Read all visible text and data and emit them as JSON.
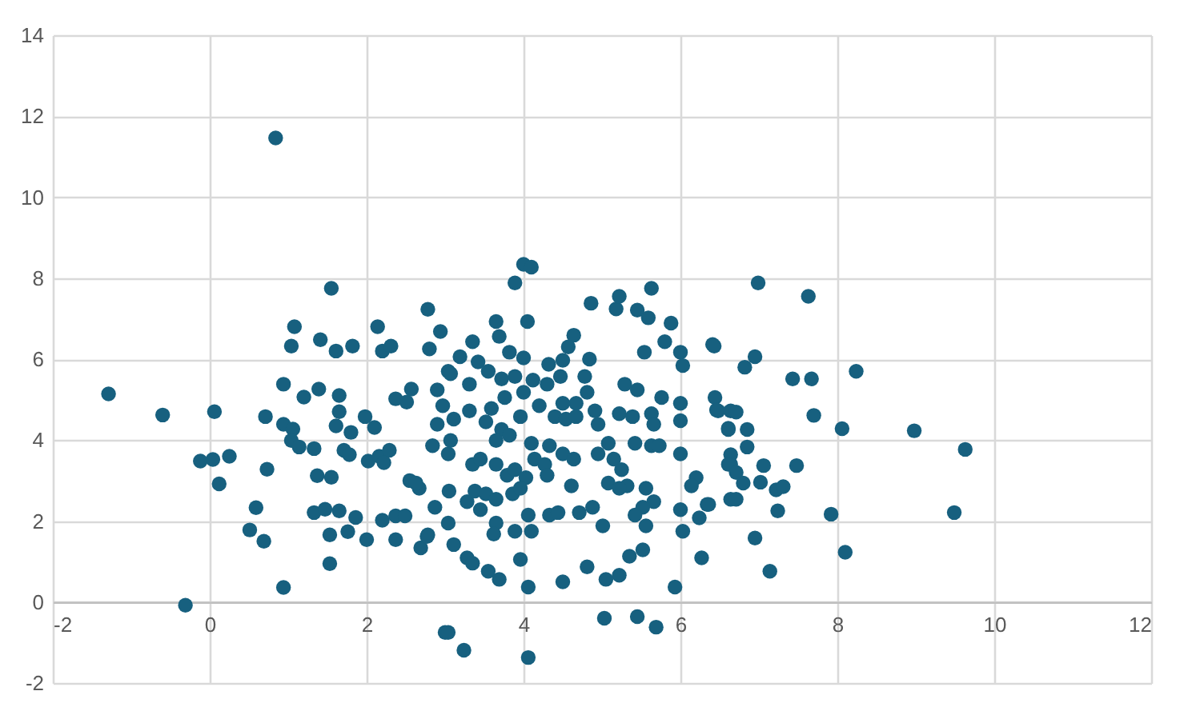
{
  "chart_data": {
    "type": "scatter",
    "marker": "circle",
    "grid": true,
    "xlim": [
      -2,
      12
    ],
    "xticks": [
      -2,
      0,
      2,
      4,
      6,
      8,
      10,
      12
    ],
    "ylim": [
      -2,
      14
    ],
    "yticks": [
      -2,
      0,
      2,
      4,
      6,
      8,
      10,
      12,
      14
    ],
    "series": [
      {
        "color": "#17607f",
        "x": [
          -1.29,
          -0.6,
          -0.31,
          -0.12,
          0.04,
          0.06,
          0.25,
          0.12,
          0.59,
          0.51,
          0.69,
          0.73,
          0.71,
          0.94,
          0.94,
          1.04,
          1.08,
          0.94,
          1.06,
          1.04,
          1.14,
          1.33,
          1.2,
          1.39,
          1.41,
          1.55,
          1.61,
          1.82,
          1.65,
          1.65,
          1.61,
          1.8,
          1.71,
          1.78,
          1.37,
          1.55,
          1.33,
          1.47,
          1.65,
          1.86,
          1.53,
          1.76,
          1.53,
          2.0,
          1.98,
          2.1,
          2.02,
          2.16,
          2.29,
          2.22,
          2.14,
          2.2,
          2.31,
          2.37,
          2.57,
          2.51,
          2.2,
          2.37,
          2.49,
          2.37,
          2.55,
          2.67,
          2.69,
          2.78,
          2.78,
          2.8,
          2.94,
          3.0,
          0.84,
          4.0,
          4.1,
          3.89,
          3.65,
          3.69,
          4.05,
          3.35,
          3.19,
          3.42,
          3.82,
          4.0,
          3.04,
          2.9,
          2.97,
          3.07,
          3.31,
          3.55,
          3.72,
          3.89,
          4.12,
          4.32,
          4.5,
          4.64,
          4.57,
          4.84,
          4.86,
          5.18,
          5.22,
          5.45,
          5.59,
          5.63,
          5.88,
          5.8,
          5.54,
          6.0,
          6.03,
          6.41,
          4.78,
          4.47,
          4.3,
          4.81,
          4.67,
          4.5,
          4.2,
          4.0,
          3.76,
          3.59,
          3.31,
          3.11,
          2.9,
          3.52,
          3.72,
          3.96,
          4.4,
          4.54,
          4.67,
          4.91,
          4.95,
          5.22,
          5.39,
          5.29,
          5.45,
          5.63,
          5.66,
          5.76,
          6.0,
          6.0,
          6.48,
          6.64,
          6.61,
          2.84,
          3.04,
          3.07,
          3.35,
          3.45,
          3.65,
          3.82,
          3.65,
          3.79,
          4.1,
          4.14,
          4.27,
          4.33,
          4.5,
          4.64,
          3.89,
          4.03,
          4.3,
          4.95,
          5.08,
          5.15,
          5.25,
          5.32,
          5.42,
          5.63,
          5.73,
          6.0,
          5.08,
          5.22,
          5.56,
          5.66,
          5.52,
          5.42,
          5.56,
          6.2,
          6.14,
          6.34,
          6.24,
          6.0,
          6.03,
          6.64,
          6.64,
          2.63,
          2.87,
          3.05,
          3.28,
          3.38,
          3.52,
          3.65,
          3.86,
          3.96,
          3.45,
          3.65,
          3.62,
          3.89,
          4.06,
          4.1,
          4.33,
          4.44,
          4.71,
          4.88,
          5.01,
          4.61,
          3.04,
          2.77,
          3.11,
          3.28,
          3.35,
          3.55,
          3.69,
          3.96,
          4.06,
          4.5,
          4.81,
          5.05,
          5.22,
          5.35,
          5.52,
          5.93,
          6.27,
          3.04,
          3.24,
          4.06,
          5.03,
          5.45,
          5.69,
          6.99,
          7.63,
          6.43,
          6.82,
          6.95,
          7.43,
          7.67,
          8.24,
          6.44,
          6.46,
          6.71,
          6.61,
          6.85,
          6.85,
          7.7,
          8.06,
          8.98,
          9.63,
          6.64,
          6.61,
          6.71,
          7.06,
          7.48,
          6.8,
          7.02,
          7.22,
          7.31,
          6.71,
          7.24,
          7.92,
          9.49,
          6.36,
          6.95,
          7.14,
          8.1
        ],
        "values": [
          5.14,
          4.62,
          -0.08,
          3.48,
          3.52,
          4.7,
          3.6,
          2.92,
          2.33,
          1.78,
          1.5,
          3.28,
          4.58,
          0.36,
          5.38,
          6.32,
          6.8,
          4.39,
          4.27,
          3.99,
          3.83,
          3.79,
          5.06,
          5.26,
          6.48,
          7.75,
          6.2,
          6.32,
          5.1,
          4.7,
          4.35,
          4.19,
          3.75,
          3.64,
          3.12,
          3.08,
          2.21,
          2.29,
          2.25,
          2.09,
          1.66,
          1.74,
          0.95,
          1.54,
          4.58,
          4.31,
          3.48,
          3.6,
          3.75,
          3.44,
          6.8,
          6.2,
          6.32,
          5.02,
          5.26,
          4.94,
          2.02,
          2.13,
          2.13,
          1.54,
          3.0,
          2.81,
          1.34,
          1.66,
          7.23,
          6.25,
          6.68,
          -0.75,
          11.46,
          8.34,
          8.27,
          7.88,
          6.93,
          6.56,
          6.93,
          6.43,
          6.06,
          5.93,
          6.17,
          6.03,
          5.7,
          5.24,
          4.85,
          5.64,
          5.38,
          5.7,
          5.51,
          5.57,
          5.48,
          5.87,
          5.97,
          6.59,
          6.3,
          6.0,
          7.38,
          7.24,
          7.55,
          7.21,
          7.02,
          7.75,
          6.89,
          6.43,
          6.17,
          6.17,
          5.84,
          6.36,
          5.57,
          5.57,
          5.38,
          5.18,
          4.91,
          4.91,
          4.85,
          5.18,
          5.05,
          4.78,
          4.72,
          4.52,
          4.39,
          4.45,
          4.26,
          4.58,
          4.58,
          4.52,
          4.58,
          4.72,
          4.39,
          4.65,
          4.58,
          5.38,
          5.24,
          4.65,
          4.39,
          5.05,
          4.91,
          4.48,
          4.72,
          4.72,
          4.29,
          3.86,
          3.66,
          3.99,
          3.4,
          3.53,
          3.99,
          4.12,
          3.4,
          3.13,
          3.92,
          3.53,
          3.4,
          3.86,
          3.66,
          3.53,
          3.27,
          3.07,
          3.13,
          3.66,
          3.92,
          3.53,
          3.27,
          2.87,
          3.92,
          3.86,
          3.86,
          3.66,
          2.94,
          2.81,
          2.81,
          2.48,
          2.34,
          2.15,
          1.88,
          3.07,
          2.87,
          2.41,
          2.08,
          2.28,
          1.75,
          3.4,
          2.54,
          2.94,
          2.34,
          2.74,
          2.48,
          2.74,
          2.67,
          2.54,
          2.67,
          2.81,
          2.28,
          1.95,
          1.68,
          1.75,
          2.15,
          1.75,
          2.15,
          2.21,
          2.21,
          2.34,
          1.88,
          2.87,
          1.95,
          1.62,
          1.42,
          1.09,
          0.96,
          0.76,
          0.56,
          1.05,
          0.37,
          0.5,
          0.87,
          0.56,
          0.66,
          1.13,
          1.29,
          0.37,
          1.09,
          -0.75,
          -1.19,
          -1.37,
          -0.4,
          -0.36,
          -0.62,
          7.88,
          7.55,
          6.32,
          5.8,
          6.06,
          5.51,
          5.51,
          5.7,
          5.05,
          4.74,
          4.69,
          4.26,
          4.26,
          3.83,
          4.61,
          4.28,
          4.23,
          3.77,
          3.64,
          3.4,
          3.2,
          3.37,
          3.37,
          2.94,
          2.96,
          2.77,
          2.85,
          2.54,
          2.25,
          2.17,
          2.21,
          2.41,
          1.58,
          0.76,
          1.23
        ]
      }
    ]
  }
}
